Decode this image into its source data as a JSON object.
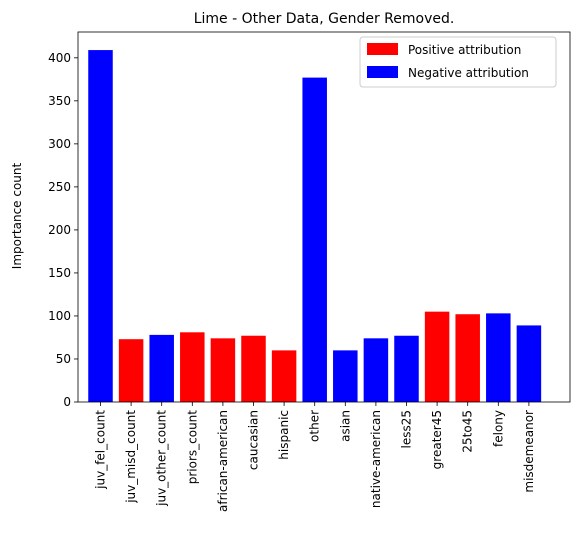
{
  "chart_data": {
    "type": "bar",
    "title": "Lime - Other Data, Gender Removed.",
    "xlabel": "",
    "ylabel": "Importance count",
    "ylim": [
      0,
      430
    ],
    "yticks": [
      0,
      50,
      100,
      150,
      200,
      250,
      300,
      350,
      400
    ],
    "grid": false,
    "legend_position": "top-right",
    "legend": [
      {
        "label": "Positive attribution",
        "color": "#ff0000"
      },
      {
        "label": "Negative attribution",
        "color": "#0000ff"
      }
    ],
    "categories": [
      "juv_fel_count",
      "juv_misd_count",
      "juv_other_count",
      "priors_count",
      "african-american",
      "caucasian",
      "hispanic",
      "other",
      "asian",
      "native-american",
      "less25",
      "greater45",
      "25to45",
      "felony",
      "misdemeanor"
    ],
    "values": [
      409,
      73,
      78,
      81,
      74,
      77,
      60,
      377,
      60,
      74,
      77,
      105,
      102,
      103,
      89
    ],
    "attribution": [
      "negative",
      "positive",
      "negative",
      "positive",
      "positive",
      "positive",
      "positive",
      "negative",
      "negative",
      "negative",
      "negative",
      "positive",
      "positive",
      "negative",
      "negative"
    ]
  }
}
